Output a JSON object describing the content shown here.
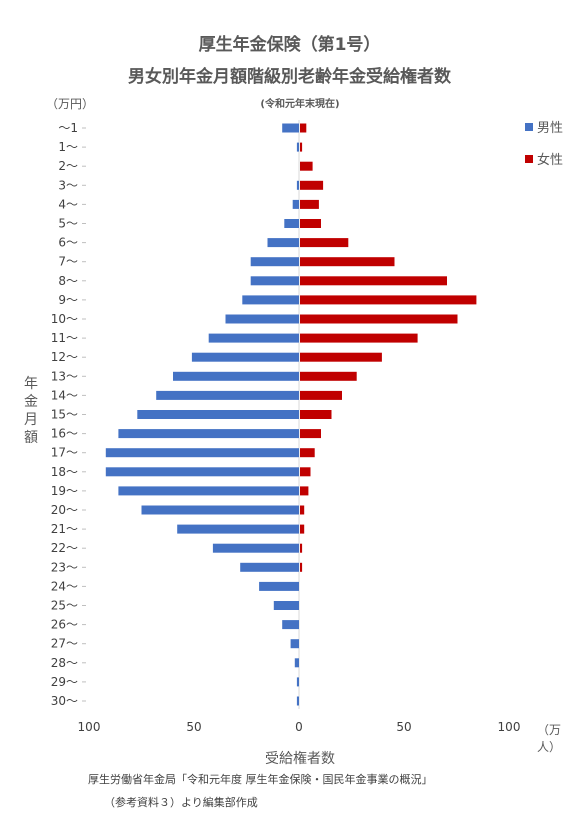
{
  "title_line1": "厚生年金保険（第1号）",
  "title_line2": "男女別年金月額階級別老齢年金受給権者数",
  "subtitle": "(令和元年末現在)",
  "y_unit": "（万円）",
  "x_unit": "（万人）",
  "y_axis_label": "年金月額",
  "x_axis_label": "受給権者数",
  "source_line1": "厚生労働省年金局「令和元年度 厚生年金保険・国民年金事業の概況」",
  "source_line2": "（参考資料３）より編集部作成",
  "legend": {
    "male": "男性",
    "female": "女性"
  },
  "colors": {
    "male": "#4472C4",
    "female": "#C00000"
  },
  "chart_data": {
    "type": "bar",
    "orientation": "horizontal",
    "categories": [
      "～1",
      "1～",
      "2～",
      "3～",
      "4～",
      "5～",
      "6～",
      "7～",
      "8～",
      "9～",
      "10～",
      "11～",
      "12～",
      "13～",
      "14～",
      "15～",
      "16～",
      "17～",
      "18～",
      "19～",
      "20～",
      "21～",
      "22～",
      "23～",
      "24～",
      "25～",
      "26～",
      "27～",
      "28～",
      "29～",
      "30～"
    ],
    "series": [
      {
        "name": "男性",
        "values": [
          8,
          1,
          0,
          1,
          3,
          7,
          15,
          23,
          23,
          27,
          35,
          43,
          51,
          60,
          68,
          77,
          86,
          92,
          92,
          86,
          75,
          58,
          41,
          28,
          19,
          12,
          8,
          4,
          2,
          1,
          1
        ]
      },
      {
        "name": "女性",
        "values": [
          3,
          1,
          6,
          11,
          9,
          10,
          23,
          45,
          70,
          84,
          75,
          56,
          39,
          27,
          20,
          15,
          10,
          7,
          5,
          4,
          2,
          2,
          1,
          1,
          0,
          0,
          0,
          0,
          0,
          0,
          0
        ]
      }
    ],
    "x_ticks": [
      "100",
      "50",
      "0",
      "50",
      "100"
    ],
    "xlim": [
      -100,
      100
    ],
    "grid": false,
    "legend_position": "right"
  }
}
